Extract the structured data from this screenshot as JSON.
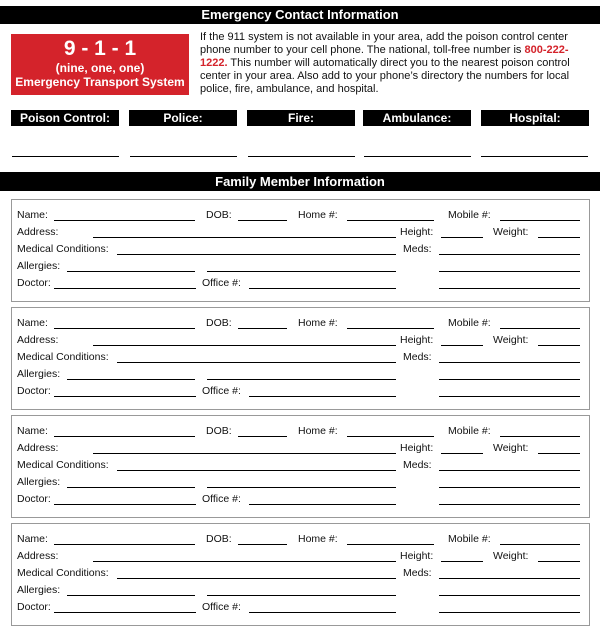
{
  "header": {
    "title": "Emergency Contact Information"
  },
  "emergency_box": {
    "number": "9 - 1 - 1",
    "spoken": "(nine, one, one)",
    "system": "Emergency Transport System"
  },
  "intro": {
    "part1": "If the 911 system is not available in your area, add the poison control center phone number to your cell phone. The national, toll-free number is ",
    "phone": "800-222-1222.",
    "part2": " This number will automatically direct you to the nearest poison control center in your area. Also add to your phone’s directory the numbers for local police, fire, ambulance, and hospital."
  },
  "contacts": [
    "Poison Control:",
    "Police:",
    "Fire:",
    "Ambulance:",
    "Hospital:"
  ],
  "family": {
    "title": "Family Member Information",
    "member_count": 4,
    "labels": {
      "name": "Name:",
      "dob": "DOB:",
      "home": "Home #:",
      "mobile": "Mobile #:",
      "address": "Address:",
      "height": "Height:",
      "weight": "Weight:",
      "conditions": "Medical Conditions:",
      "meds": "Meds:",
      "allergies": "Allergies:",
      "doctor": "Doctor:",
      "office": "Office #:"
    }
  },
  "colors": {
    "accent": "#d4232b",
    "bar": "#000000"
  }
}
